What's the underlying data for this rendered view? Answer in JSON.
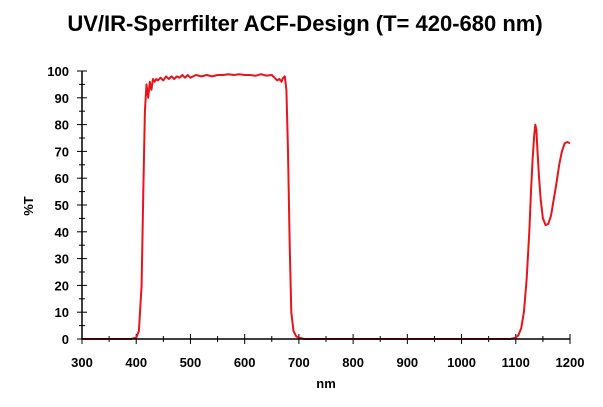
{
  "chart_data": {
    "type": "line",
    "title": "UV/IR-Sperrfilter ACF-Design (T= 420-680 nm)",
    "xlabel": "nm",
    "ylabel": "%T",
    "xlim": [
      300,
      1200
    ],
    "ylim": [
      0,
      100
    ],
    "x_ticks": [
      300,
      400,
      500,
      600,
      700,
      800,
      900,
      1000,
      1100,
      1200
    ],
    "y_ticks": [
      0,
      10,
      20,
      30,
      40,
      50,
      60,
      70,
      80,
      90,
      100
    ],
    "x_tick_labels": [
      "300",
      "400",
      "500",
      "600",
      "700",
      "800",
      "900",
      "1000",
      "1100",
      "1200"
    ],
    "y_tick_labels": [
      "0",
      "10",
      "20",
      "30",
      "40",
      "50",
      "60",
      "70",
      "80",
      "90",
      "100"
    ],
    "grid": false,
    "series_color": "#e8141c",
    "series": [
      {
        "x": [
          300,
          390,
          400,
          405,
          410,
          413,
          416,
          419,
          422,
          425,
          428,
          431,
          434,
          437,
          440,
          445,
          450,
          455,
          460,
          465,
          470,
          475,
          480,
          485,
          490,
          495,
          500,
          510,
          520,
          530,
          540,
          550,
          560,
          570,
          580,
          590,
          600,
          610,
          620,
          630,
          640,
          650,
          655,
          660,
          664,
          668,
          671,
          674,
          677,
          680,
          683,
          686,
          690,
          695,
          700,
          710,
          800,
          900,
          1000,
          1090,
          1100,
          1105,
          1110,
          1115,
          1120,
          1125,
          1128,
          1131,
          1134,
          1136,
          1138,
          1140,
          1143,
          1146,
          1150,
          1155,
          1160,
          1165,
          1170,
          1175,
          1180,
          1185,
          1190,
          1195,
          1200
        ],
        "y": [
          0,
          0,
          0.5,
          3,
          20,
          55,
          85,
          95,
          90,
          96,
          93,
          97,
          96,
          97,
          96.5,
          97.5,
          96.5,
          98,
          97,
          98,
          97,
          98,
          97.5,
          98.5,
          97.5,
          98.5,
          97.5,
          98.5,
          98,
          98.5,
          98,
          98.5,
          98.5,
          98.8,
          98.5,
          98.8,
          98.5,
          98.5,
          98.2,
          98.8,
          98.3,
          98.5,
          97.5,
          96.5,
          97,
          96,
          97.5,
          98,
          93,
          70,
          35,
          10,
          3,
          1,
          0.5,
          0,
          0,
          0,
          0,
          0,
          0.5,
          1.5,
          4,
          10,
          22,
          40,
          55,
          67,
          76,
          80,
          78,
          70,
          60,
          52,
          45,
          42.5,
          43,
          46,
          52,
          58,
          65,
          70,
          73,
          73.5,
          73
        ]
      }
    ]
  }
}
